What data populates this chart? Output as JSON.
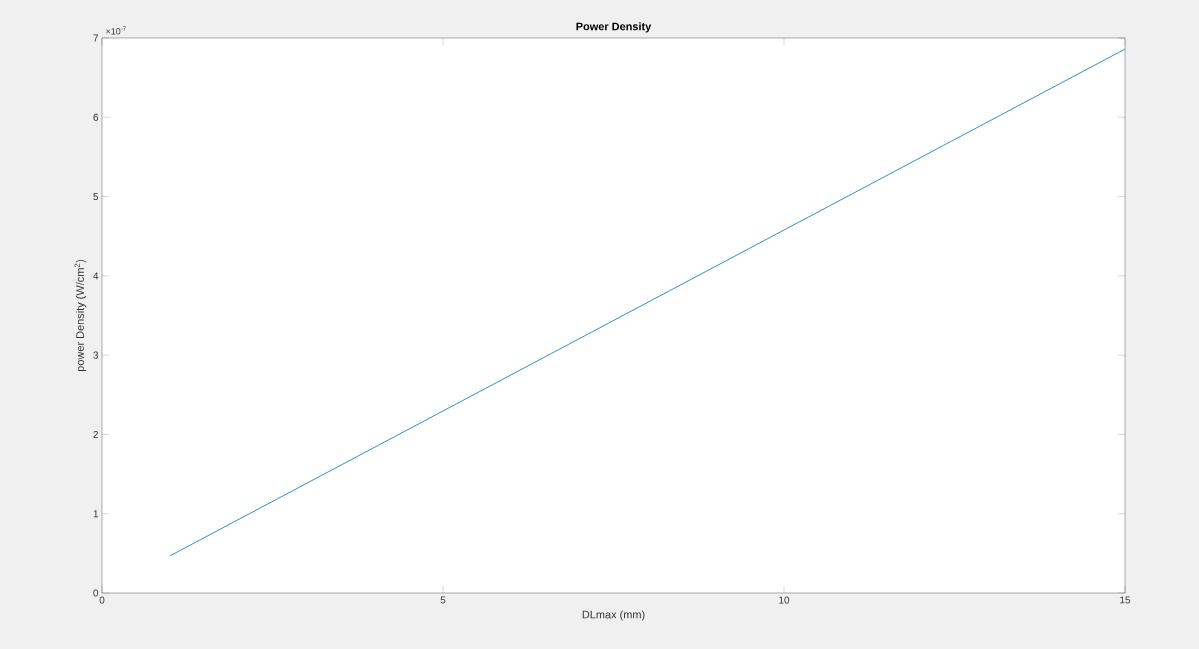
{
  "chart_data": {
    "type": "line",
    "title": "Power Density",
    "xlabel": "DLmax (mm)",
    "ylabel": "power Density (W/cm$^{2}$)",
    "annotations": [
      "×10$^{-7}$"
    ],
    "x": [
      1,
      15
    ],
    "series": [
      {
        "color": "#0072bd",
        "values": [
          0.47,
          6.86
        ]
      }
    ],
    "xlim": [
      0,
      15
    ],
    "xticks": [
      0,
      5,
      10,
      15
    ],
    "ylim": [
      0,
      7
    ],
    "yticks": [
      0,
      1,
      2,
      3,
      4,
      5,
      6,
      7
    ],
    "grid": false,
    "marker": "none",
    "line_style": "solid"
  }
}
